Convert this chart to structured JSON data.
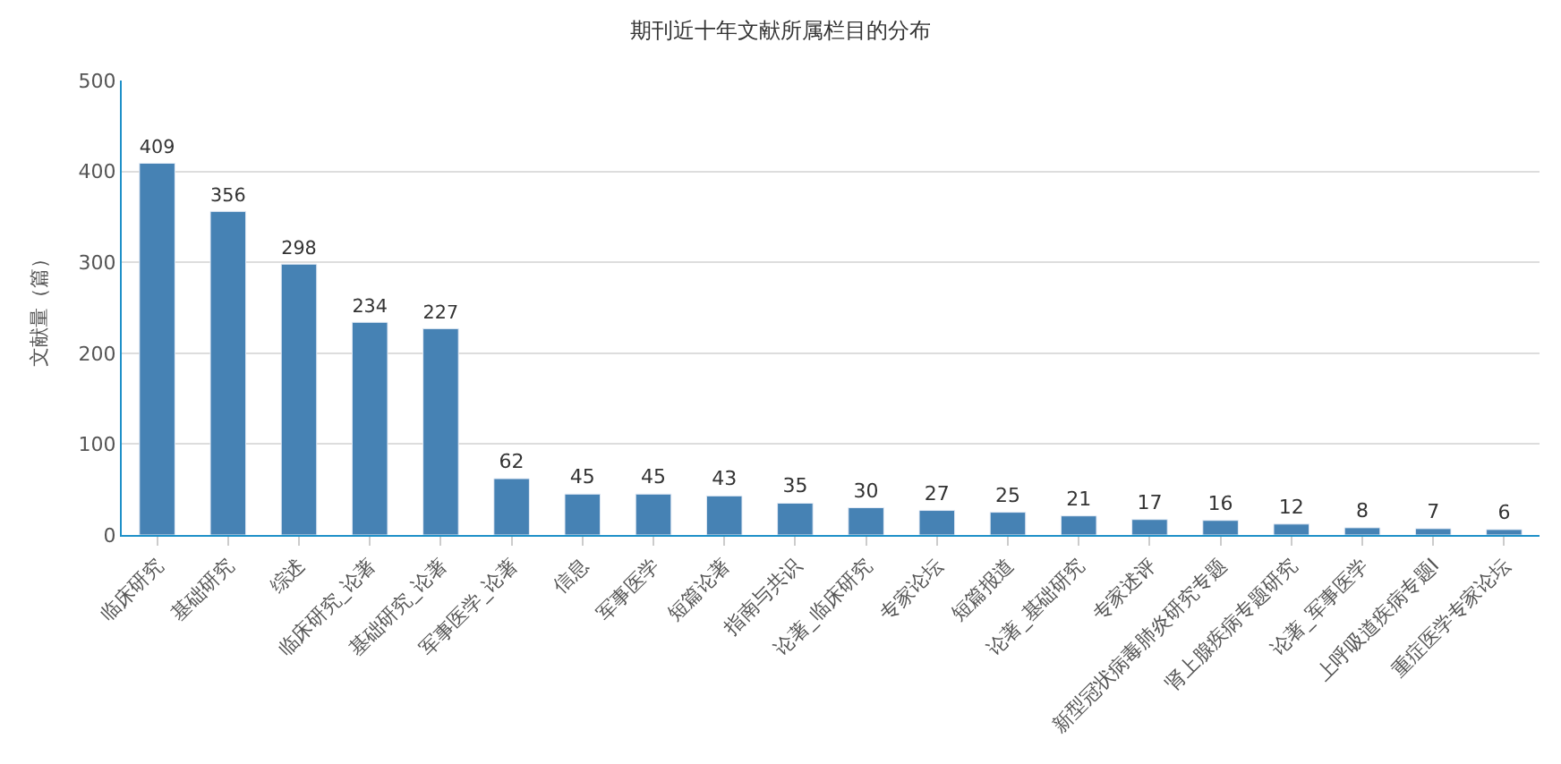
{
  "chart_data": {
    "type": "bar",
    "title": "期刊近十年文献所属栏目的分布",
    "ylabel": "文献量（篇）",
    "categories": [
      "临床研究",
      "基础研究",
      "综述",
      "临床研究_论著",
      "基础研究_论著",
      "军事医学_论著",
      "信息",
      "军事医学",
      "短篇论著",
      "指南与共识",
      "论著_临床研究",
      "专家论坛",
      "短篇报道",
      "论著_基础研究",
      "专家述评",
      "新型冠状病毒肺炎研究专题",
      "肾上腺疾病专题研究",
      "论著_军事医学",
      "上呼吸道疾病专题Ⅰ",
      "重症医学专家论坛"
    ],
    "values": [
      409,
      356,
      298,
      234,
      227,
      62,
      45,
      45,
      43,
      35,
      30,
      27,
      25,
      21,
      17,
      16,
      12,
      8,
      7,
      6
    ],
    "color": "#4682b4",
    "ylim": [
      0,
      500
    ],
    "yticks": [
      0,
      100,
      200,
      300,
      400,
      500
    ],
    "grid": "y",
    "data_labels": true
  }
}
